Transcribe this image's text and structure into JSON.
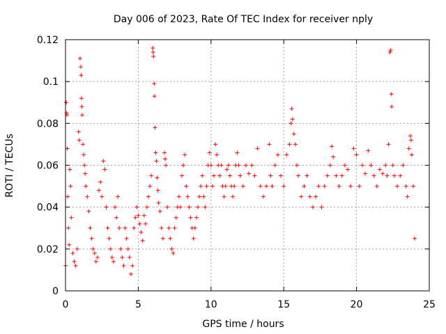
{
  "chart_data": {
    "type": "scatter",
    "title": "Day 006 of 2023, Rate Of TEC Index for receiver nply",
    "xlabel": "GPS time / hours",
    "ylabel": "ROTI / TECUs",
    "xlim": [
      0,
      25
    ],
    "ylim": [
      0,
      0.12
    ],
    "x_ticks": [
      0,
      5,
      10,
      15,
      20,
      25
    ],
    "x_tick_labels": [
      "0",
      "5",
      "10",
      "15",
      "20",
      "25"
    ],
    "y_ticks": [
      0,
      0.02,
      0.04,
      0.06,
      0.08,
      0.1,
      0.12
    ],
    "y_tick_labels": [
      "0",
      "0.02",
      "0.04",
      "0.06",
      "0.08",
      "0.1",
      "0.12"
    ],
    "grid": true,
    "marker": "+",
    "color": "#ff0000",
    "series": [
      {
        "points": [
          [
            0.0,
            0.012
          ],
          [
            0.05,
            0.09
          ],
          [
            0.08,
            0.085
          ],
          [
            0.1,
            0.084
          ],
          [
            0.12,
            0.068
          ],
          [
            0.15,
            0.045
          ],
          [
            0.2,
            0.03
          ],
          [
            0.25,
            0.022
          ],
          [
            0.3,
            0.058
          ],
          [
            0.35,
            0.05
          ],
          [
            0.4,
            0.035
          ],
          [
            0.5,
            0.018
          ],
          [
            0.6,
            0.014
          ],
          [
            0.7,
            0.012
          ],
          [
            0.8,
            0.02
          ],
          [
            0.9,
            0.076
          ],
          [
            0.95,
            0.072
          ],
          [
            1.0,
            0.111
          ],
          [
            1.05,
            0.107
          ],
          [
            1.08,
            0.103
          ],
          [
            1.1,
            0.092
          ],
          [
            1.12,
            0.088
          ],
          [
            1.15,
            0.084
          ],
          [
            1.2,
            0.07
          ],
          [
            1.25,
            0.065
          ],
          [
            1.3,
            0.06
          ],
          [
            1.35,
            0.056
          ],
          [
            1.4,
            0.05
          ],
          [
            1.5,
            0.045
          ],
          [
            1.6,
            0.038
          ],
          [
            1.7,
            0.03
          ],
          [
            1.8,
            0.025
          ],
          [
            1.9,
            0.02
          ],
          [
            2.0,
            0.018
          ],
          [
            2.1,
            0.014
          ],
          [
            2.2,
            0.016
          ],
          [
            2.3,
            0.048
          ],
          [
            2.4,
            0.052
          ],
          [
            2.5,
            0.045
          ],
          [
            2.6,
            0.062
          ],
          [
            2.7,
            0.058
          ],
          [
            2.8,
            0.04
          ],
          [
            2.9,
            0.03
          ],
          [
            3.0,
            0.025
          ],
          [
            3.1,
            0.02
          ],
          [
            3.2,
            0.016
          ],
          [
            3.3,
            0.014
          ],
          [
            3.4,
            0.04
          ],
          [
            3.5,
            0.035
          ],
          [
            3.6,
            0.045
          ],
          [
            3.7,
            0.03
          ],
          [
            3.8,
            0.02
          ],
          [
            3.9,
            0.016
          ],
          [
            4.0,
            0.012
          ],
          [
            4.1,
            0.03
          ],
          [
            4.2,
            0.025
          ],
          [
            4.3,
            0.02
          ],
          [
            4.4,
            0.016
          ],
          [
            4.5,
            0.008
          ],
          [
            4.6,
            0.012
          ],
          [
            4.7,
            0.03
          ],
          [
            4.8,
            0.035
          ],
          [
            4.9,
            0.04
          ],
          [
            5.0,
            0.036
          ],
          [
            5.1,
            0.032
          ],
          [
            5.2,
            0.028
          ],
          [
            5.3,
            0.024
          ],
          [
            5.4,
            0.036
          ],
          [
            5.5,
            0.032
          ],
          [
            5.6,
            0.04
          ],
          [
            5.7,
            0.045
          ],
          [
            5.8,
            0.05
          ],
          [
            5.9,
            0.055
          ],
          [
            6.0,
            0.116
          ],
          [
            6.02,
            0.114
          ],
          [
            6.05,
            0.112
          ],
          [
            6.1,
            0.099
          ],
          [
            6.12,
            0.093
          ],
          [
            6.15,
            0.078
          ],
          [
            6.2,
            0.066
          ],
          [
            6.25,
            0.062
          ],
          [
            6.3,
            0.054
          ],
          [
            6.35,
            0.048
          ],
          [
            6.4,
            0.042
          ],
          [
            6.5,
            0.038
          ],
          [
            6.6,
            0.03
          ],
          [
            6.7,
            0.025
          ],
          [
            6.8,
            0.066
          ],
          [
            6.85,
            0.063
          ],
          [
            6.9,
            0.06
          ],
          [
            7.0,
            0.04
          ],
          [
            7.1,
            0.03
          ],
          [
            7.2,
            0.025
          ],
          [
            7.3,
            0.02
          ],
          [
            7.4,
            0.018
          ],
          [
            7.5,
            0.03
          ],
          [
            7.6,
            0.035
          ],
          [
            7.7,
            0.04
          ],
          [
            7.8,
            0.045
          ],
          [
            7.9,
            0.04
          ],
          [
            8.0,
            0.055
          ],
          [
            8.1,
            0.06
          ],
          [
            8.2,
            0.065
          ],
          [
            8.3,
            0.05
          ],
          [
            8.4,
            0.045
          ],
          [
            8.5,
            0.04
          ],
          [
            8.6,
            0.035
          ],
          [
            8.7,
            0.03
          ],
          [
            8.8,
            0.025
          ],
          [
            8.9,
            0.03
          ],
          [
            9.0,
            0.035
          ],
          [
            9.1,
            0.04
          ],
          [
            9.2,
            0.045
          ],
          [
            9.3,
            0.05
          ],
          [
            9.4,
            0.055
          ],
          [
            9.5,
            0.045
          ],
          [
            9.6,
            0.04
          ],
          [
            9.7,
            0.05
          ],
          [
            9.8,
            0.06
          ],
          [
            9.9,
            0.066
          ],
          [
            10.0,
            0.06
          ],
          [
            10.1,
            0.05
          ],
          [
            10.2,
            0.055
          ],
          [
            10.3,
            0.07
          ],
          [
            10.4,
            0.065
          ],
          [
            10.5,
            0.06
          ],
          [
            10.6,
            0.055
          ],
          [
            10.7,
            0.06
          ],
          [
            10.8,
            0.05
          ],
          [
            10.9,
            0.045
          ],
          [
            11.0,
            0.05
          ],
          [
            11.1,
            0.058
          ],
          [
            11.2,
            0.06
          ],
          [
            11.3,
            0.055
          ],
          [
            11.4,
            0.05
          ],
          [
            11.5,
            0.045
          ],
          [
            11.6,
            0.05
          ],
          [
            11.7,
            0.06
          ],
          [
            11.8,
            0.066
          ],
          [
            11.9,
            0.06
          ],
          [
            12.0,
            0.055
          ],
          [
            12.2,
            0.05
          ],
          [
            12.4,
            0.06
          ],
          [
            12.6,
            0.056
          ],
          [
            12.8,
            0.06
          ],
          [
            13.0,
            0.055
          ],
          [
            13.2,
            0.068
          ],
          [
            13.4,
            0.05
          ],
          [
            13.6,
            0.045
          ],
          [
            13.8,
            0.05
          ],
          [
            14.0,
            0.07
          ],
          [
            14.1,
            0.055
          ],
          [
            14.2,
            0.05
          ],
          [
            14.4,
            0.06
          ],
          [
            14.6,
            0.065
          ],
          [
            14.8,
            0.055
          ],
          [
            15.0,
            0.05
          ],
          [
            15.2,
            0.065
          ],
          [
            15.4,
            0.07
          ],
          [
            15.5,
            0.08
          ],
          [
            15.55,
            0.087
          ],
          [
            15.6,
            0.082
          ],
          [
            15.7,
            0.075
          ],
          [
            15.8,
            0.07
          ],
          [
            15.9,
            0.06
          ],
          [
            16.0,
            0.055
          ],
          [
            16.2,
            0.045
          ],
          [
            16.4,
            0.05
          ],
          [
            16.6,
            0.055
          ],
          [
            16.8,
            0.045
          ],
          [
            17.0,
            0.04
          ],
          [
            17.2,
            0.045
          ],
          [
            17.4,
            0.05
          ],
          [
            17.6,
            0.04
          ],
          [
            17.8,
            0.05
          ],
          [
            18.0,
            0.055
          ],
          [
            18.2,
            0.06
          ],
          [
            18.3,
            0.069
          ],
          [
            18.4,
            0.064
          ],
          [
            18.6,
            0.055
          ],
          [
            18.8,
            0.05
          ],
          [
            19.0,
            0.055
          ],
          [
            19.2,
            0.06
          ],
          [
            19.4,
            0.058
          ],
          [
            19.6,
            0.05
          ],
          [
            19.8,
            0.068
          ],
          [
            20.0,
            0.065
          ],
          [
            20.2,
            0.05
          ],
          [
            20.4,
            0.06
          ],
          [
            20.6,
            0.056
          ],
          [
            20.8,
            0.067
          ],
          [
            21.0,
            0.06
          ],
          [
            21.2,
            0.055
          ],
          [
            21.4,
            0.05
          ],
          [
            21.6,
            0.058
          ],
          [
            21.8,
            0.056
          ],
          [
            22.0,
            0.06
          ],
          [
            22.1,
            0.055
          ],
          [
            22.2,
            0.07
          ],
          [
            22.3,
            0.114
          ],
          [
            22.35,
            0.115
          ],
          [
            22.4,
            0.094
          ],
          [
            22.42,
            0.088
          ],
          [
            22.5,
            0.06
          ],
          [
            22.6,
            0.055
          ],
          [
            22.8,
            0.05
          ],
          [
            23.0,
            0.055
          ],
          [
            23.2,
            0.06
          ],
          [
            23.4,
            0.05
          ],
          [
            23.5,
            0.045
          ],
          [
            23.6,
            0.068
          ],
          [
            23.7,
            0.074
          ],
          [
            23.75,
            0.072
          ],
          [
            23.8,
            0.065
          ],
          [
            23.9,
            0.05
          ],
          [
            24.0,
            0.025
          ]
        ]
      }
    ]
  }
}
